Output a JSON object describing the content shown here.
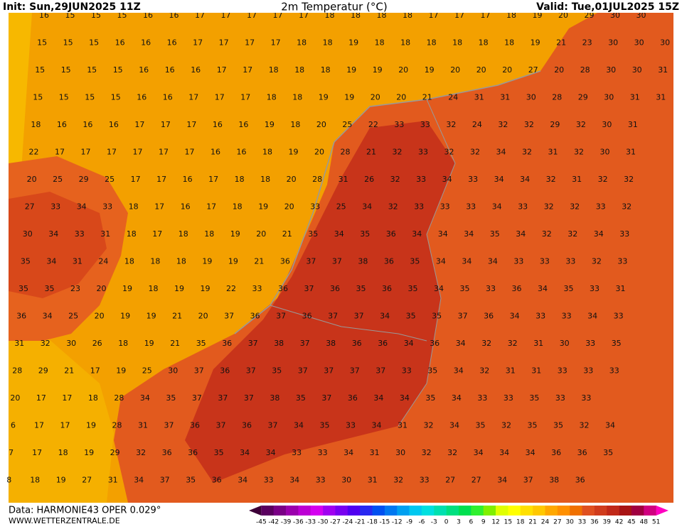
{
  "header": {
    "init": "Init: Sun,29JUN2025 11Z",
    "title": "2m Temperatur (°C)",
    "valid": "Valid: Tue,01JUL2025 15Z"
  },
  "footer": {
    "source": "Data: HARMONIE43 OPER 0.029°",
    "site": "WWW.WETTERZENTRALE.DE"
  },
  "map": {
    "rows": [
      {
        "values": [
          16,
          15,
          15,
          15,
          16,
          16,
          17,
          17,
          17,
          17,
          17,
          18,
          18,
          18,
          18,
          17,
          17,
          17,
          18,
          19,
          20,
          29,
          30,
          30
        ]
      },
      {
        "values": [
          15,
          15,
          15,
          16,
          16,
          16,
          17,
          17,
          17,
          17,
          18,
          18,
          19,
          18,
          18,
          18,
          18,
          18,
          18,
          19,
          21,
          23,
          30,
          30,
          30
        ]
      },
      {
        "values": [
          15,
          15,
          15,
          15,
          16,
          16,
          16,
          17,
          17,
          18,
          18,
          18,
          19,
          19,
          20,
          19,
          20,
          20,
          20,
          27,
          20,
          28,
          30,
          30,
          31
        ]
      },
      {
        "values": [
          15,
          15,
          15,
          15,
          16,
          16,
          17,
          17,
          17,
          18,
          18,
          19,
          19,
          20,
          20,
          21,
          24,
          31,
          31,
          30,
          28,
          29,
          30,
          31,
          31
        ]
      },
      {
        "values": [
          18,
          16,
          16,
          16,
          17,
          17,
          17,
          16,
          16,
          19,
          18,
          20,
          25,
          22,
          33,
          33,
          32,
          24,
          32,
          32,
          29,
          32,
          30,
          31
        ]
      },
      {
        "values": [
          22,
          17,
          17,
          17,
          17,
          17,
          17,
          16,
          16,
          18,
          19,
          20,
          28,
          21,
          32,
          33,
          32,
          32,
          34,
          32,
          31,
          32,
          30,
          31
        ]
      },
      {
        "values": [
          20,
          25,
          29,
          25,
          17,
          17,
          16,
          17,
          18,
          18,
          20,
          28,
          31,
          26,
          32,
          33,
          34,
          33,
          34,
          34,
          32,
          31,
          32,
          32
        ]
      },
      {
        "values": [
          27,
          33,
          34,
          33,
          18,
          17,
          16,
          17,
          18,
          19,
          20,
          33,
          25,
          34,
          32,
          33,
          33,
          33,
          34,
          33,
          32,
          32,
          33,
          32
        ]
      },
      {
        "values": [
          30,
          34,
          33,
          31,
          18,
          17,
          18,
          18,
          19,
          20,
          21,
          35,
          34,
          35,
          36,
          34,
          34,
          34,
          35,
          34,
          32,
          32,
          34,
          33
        ]
      },
      {
        "values": [
          35,
          34,
          31,
          24,
          18,
          18,
          18,
          19,
          19,
          21,
          36,
          37,
          37,
          38,
          36,
          35,
          34,
          34,
          34,
          33,
          33,
          33,
          32,
          33
        ]
      },
      {
        "values": [
          35,
          35,
          23,
          20,
          19,
          18,
          19,
          19,
          22,
          33,
          36,
          37,
          36,
          35,
          36,
          35,
          34,
          35,
          33,
          36,
          34,
          35,
          33,
          31
        ]
      },
      {
        "values": [
          36,
          34,
          25,
          20,
          19,
          19,
          21,
          20,
          37,
          36,
          37,
          36,
          37,
          37,
          34,
          35,
          35,
          37,
          36,
          34,
          33,
          33,
          34,
          33
        ]
      },
      {
        "values": [
          31,
          32,
          30,
          26,
          18,
          19,
          21,
          35,
          36,
          37,
          38,
          37,
          38,
          36,
          36,
          34,
          36,
          34,
          32,
          32,
          31,
          30,
          33,
          35
        ]
      },
      {
        "values": [
          28,
          29,
          21,
          17,
          19,
          25,
          30,
          37,
          36,
          37,
          35,
          37,
          37,
          37,
          37,
          33,
          35,
          34,
          32,
          31,
          31,
          33,
          33,
          33
        ]
      },
      {
        "values": [
          20,
          17,
          17,
          18,
          28,
          34,
          35,
          37,
          37,
          37,
          38,
          35,
          37,
          36,
          34,
          34,
          35,
          34,
          33,
          33,
          35,
          33,
          33
        ]
      },
      {
        "values": [
          6,
          17,
          17,
          19,
          28,
          31,
          37,
          36,
          37,
          36,
          37,
          34,
          35,
          33,
          34,
          31,
          32,
          34,
          35,
          32,
          35,
          35,
          32,
          34
        ]
      },
      {
        "values": [
          7,
          17,
          18,
          19,
          29,
          32,
          36,
          36,
          35,
          34,
          34,
          33,
          33,
          34,
          31,
          30,
          32,
          32,
          34,
          34,
          34,
          36,
          36,
          35
        ]
      },
      {
        "values": [
          8,
          18,
          19,
          27,
          31,
          34,
          37,
          35,
          36,
          34,
          33,
          34,
          33,
          30,
          31,
          32,
          33,
          27,
          27,
          34,
          37,
          38,
          36
        ]
      }
    ]
  },
  "colorbar": {
    "labels": [
      -45,
      -42,
      -39,
      -36,
      -33,
      -30,
      -27,
      -24,
      -21,
      -18,
      -15,
      -12,
      -9,
      -6,
      -3,
      0,
      3,
      6,
      9,
      12,
      15,
      18,
      21,
      24,
      27,
      30,
      33,
      36,
      39,
      42,
      45,
      48,
      51
    ],
    "colors": [
      "#3d0038",
      "#5a005f",
      "#7a0086",
      "#9b00ad",
      "#bc00d4",
      "#d400f0",
      "#a000f0",
      "#7800f0",
      "#5000f0",
      "#2828f0",
      "#0050f0",
      "#0078f0",
      "#00a0f0",
      "#00c8f0",
      "#00e0e0",
      "#00e0b0",
      "#00e080",
      "#00e050",
      "#30f030",
      "#80f000",
      "#e0ff00",
      "#ffff00",
      "#ffe000",
      "#ffc800",
      "#ffa800",
      "#ff9000",
      "#f07000",
      "#e05020",
      "#d03c1c",
      "#c02818",
      "#a81414",
      "#a00040",
      "#d00080",
      "#ff00c0"
    ]
  }
}
